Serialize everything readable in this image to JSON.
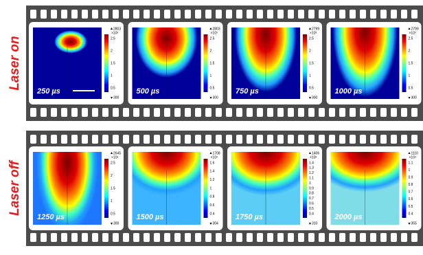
{
  "rows": [
    {
      "label": "Laser on",
      "frames": [
        {
          "time": "250 µs",
          "max": "2803",
          "unit": "×10³",
          "ticks": [
            "2.5",
            "2",
            "1.5",
            "1",
            "0.5"
          ],
          "min": "300"
        },
        {
          "time": "500 µs",
          "max": "2803",
          "unit": "×10³",
          "ticks": [
            "2.5",
            "2",
            "1.5",
            "1",
            "0.5"
          ],
          "min": "300"
        },
        {
          "time": "750 µs",
          "max": "2799",
          "unit": "×10³",
          "ticks": [
            "2.5",
            "2",
            "1.5",
            "1",
            "0.5"
          ],
          "min": "300"
        },
        {
          "time": "1000 µs",
          "max": "2799",
          "unit": "×10³",
          "ticks": [
            "2.5",
            "2",
            "1.5",
            "1",
            "0.5"
          ],
          "min": "300"
        }
      ]
    },
    {
      "label": "Laser off",
      "frames": [
        {
          "time": "1250 µs",
          "max": "2645",
          "unit": "×10³",
          "ticks": [
            "2.5",
            "2",
            "1.5",
            "1",
            "0.5"
          ],
          "min": "300"
        },
        {
          "time": "1500 µs",
          "max": "1708",
          "unit": "×10³",
          "ticks": [
            "1.6",
            "1.4",
            "1.2",
            "1",
            "0.8",
            "0.6",
            "0.4"
          ],
          "min": "304"
        },
        {
          "time": "1750 µs",
          "max": "1406",
          "unit": "×10³",
          "ticks": [
            "1.4",
            "1.3",
            "1.2",
            "1.1",
            "1",
            "0.9",
            "0.8",
            "0.7",
            "0.6",
            "0.5",
            "0.4"
          ],
          "min": "310"
        },
        {
          "time": "2000 µs",
          "max": "1110",
          "unit": "×10³",
          "ticks": [
            "1.1",
            "1",
            "0.9",
            "0.8",
            "0.7",
            "0.6",
            "0.5",
            "0.4"
          ],
          "min": "355"
        }
      ]
    }
  ]
}
